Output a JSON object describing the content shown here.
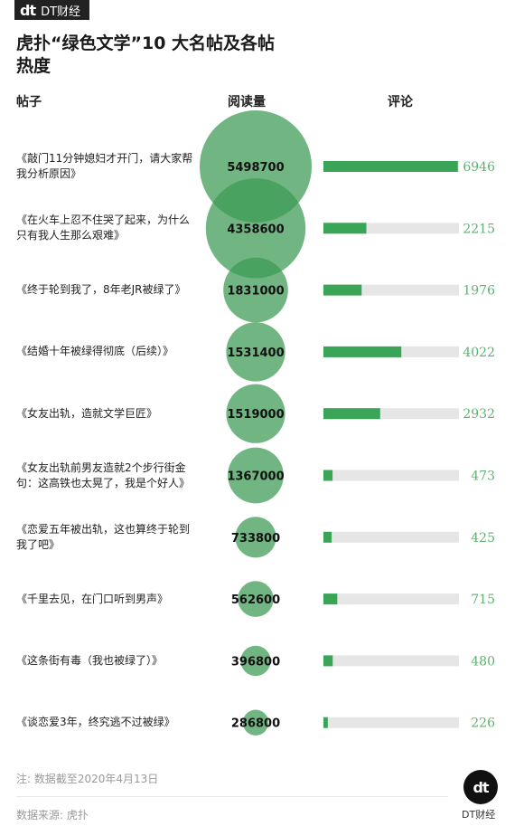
{
  "brand": {
    "logo_mark": "dt",
    "logo_name": "DT财经",
    "footer_mark": "dt",
    "footer_name": "DT财经"
  },
  "title": "虎扑“绿色文学”10 大名帖及各帖热度",
  "headers": {
    "post": "帖子",
    "reads": "阅读量",
    "comments": "评论"
  },
  "note": "注: 数据截至2020年4月13日",
  "source": "数据来源: 虎扑",
  "colors": {
    "bubble": "#3a9a52",
    "bar": "#3aa457",
    "track": "#e6e6e6",
    "comment_text": "#5fb172"
  },
  "chart_data": {
    "type": "bubble+bar",
    "title": "虎扑“绿色文学”10 大名帖及各帖热度",
    "categories": [
      "《敲门11分钟媳妇才开门，请大家帮我分析原因》",
      "《在火车上忍不住哭了起来，为什么只有我人生那么艰难》",
      "《终于轮到我了，8年老JR被绿了》",
      "《结婚十年被绿得彻底（后续）》",
      "《女友出轨，造就文学巨匠》",
      "《女友出轨前男友造就2个步行街金句：这高铁也太晃了，我是个好人》",
      "《恋爱五年被出轨，这也算终于轮到我了吧》",
      "《千里去见，在门口听到男声》",
      "《这条街有毒（我也被绿了）》",
      "《谈恋爱3年，终究逃不过被绿》"
    ],
    "series": [
      {
        "name": "阅读量",
        "values": [
          5498700,
          4358600,
          1831000,
          1531400,
          1519000,
          1367000,
          733800,
          562600,
          396800,
          286800
        ]
      },
      {
        "name": "评论",
        "values": [
          6946,
          2215,
          1976,
          4022,
          2932,
          473,
          425,
          715,
          480,
          226
        ]
      }
    ],
    "reads_labels": [
      "5498700",
      "4358600",
      "1831000",
      "1531400",
      "1519000",
      "1367000",
      "733800",
      "562600",
      "396800",
      "286800"
    ],
    "comment_labels": [
      "6946",
      "2215",
      "1976",
      "4022",
      "2932",
      "473",
      "425",
      "715",
      "480",
      "226"
    ],
    "comment_max": 7000
  }
}
